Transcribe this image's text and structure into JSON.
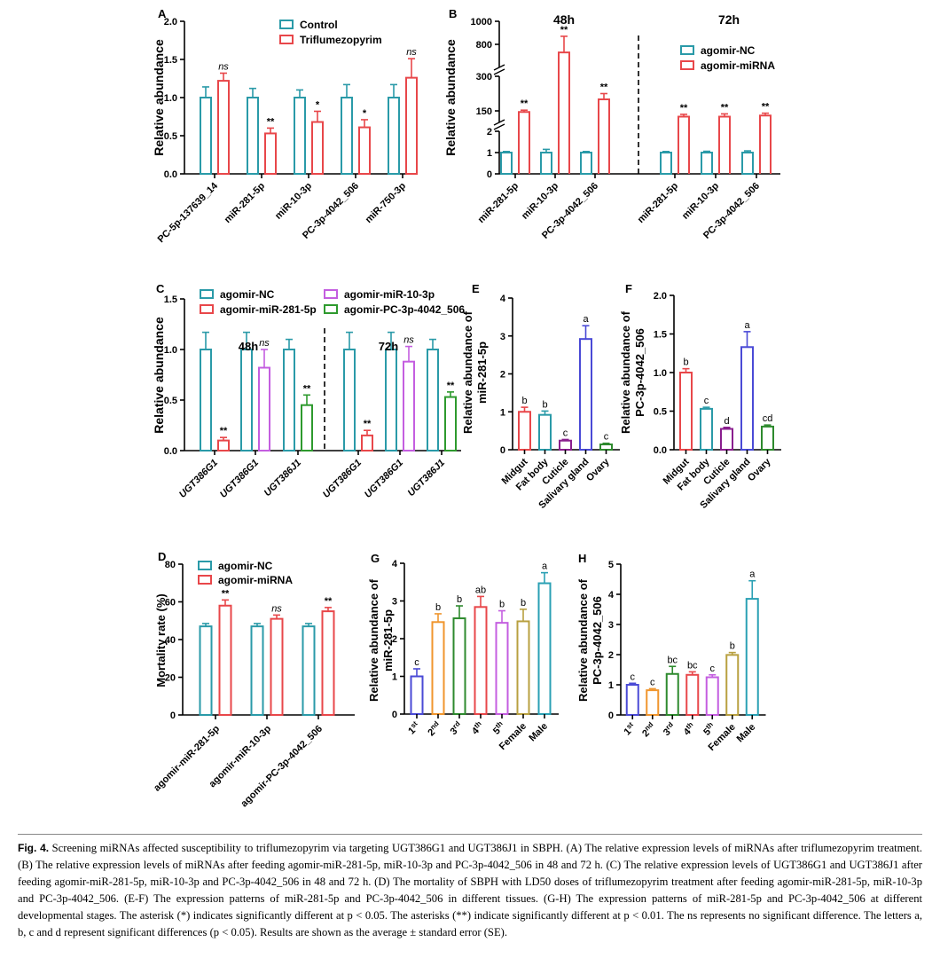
{
  "figure_title": "Fig. 4.",
  "caption": "Screening miRNAs affected susceptibility to triflumezopyrim via targeting UGT386G1 and UGT386J1 in SBPH. (A) The relative expression levels of miRNAs after triflumezopyrim treatment. (B) The relative expression levels of miRNAs after feeding agomir-miR-281-5p, miR-10-3p and PC-3p-4042_506 in 48 and 72 h. (C) The relative expression levels of UGT386G1 and UGT386J1 after feeding agomir-miR-281-5p, miR-10-3p and PC-3p-4042_506 in 48 and 72 h. (D) The mortality of SBPH with LD50 doses of triflumezopyrim treatment after feeding agomir-miR-281-5p, miR-10-3p and PC-3p-4042_506. (E-F) The expression patterns of miR-281-5p and PC-3p-4042_506 in different tissues. (G-H) The expression patterns of miR-281-5p and PC-3p-4042_506 at different developmental stages. The asterisk (*) indicates significantly different at p < 0.05. The asterisks (**) indicate significantly different at p < 0.01. The ns represents no significant difference. The letters a, b, c and d represent significant differences (p < 0.05). Results are shown as the average ± standard error (SE).",
  "chart_data": [
    {
      "panel": "A",
      "type": "bar",
      "ylabel": "Relative abundance",
      "ylim": [
        0,
        2.0
      ],
      "yticks": [
        "0.0",
        "0.5",
        "1.0",
        "1.5",
        "2.0"
      ],
      "categories": [
        "PC-5p-137639_14",
        "miR-281-5p",
        "miR-10-3p",
        "PC-3p-4042_506",
        "miR-750-3p"
      ],
      "series": [
        {
          "name": "Control",
          "color": "#2a9aa8",
          "values": [
            1.0,
            1.0,
            1.0,
            1.0,
            1.0
          ],
          "errors": [
            0.14,
            0.12,
            0.1,
            0.17,
            0.17
          ],
          "labels": [
            "",
            "",
            "",
            "",
            ""
          ]
        },
        {
          "name": "Triflumezopyrim",
          "color": "#e8474a",
          "values": [
            1.22,
            0.53,
            0.68,
            0.61,
            1.26
          ],
          "errors": [
            0.1,
            0.07,
            0.14,
            0.1,
            0.25
          ],
          "labels": [
            "ns",
            "**",
            "*",
            "*",
            "ns"
          ]
        }
      ]
    },
    {
      "panel": "B",
      "type": "bar",
      "ylabel": "Relative abundance",
      "segments": [
        {
          "range": [
            0,
            2
          ],
          "ticks": [
            "0",
            "1",
            "2"
          ]
        },
        {
          "range": [
            100,
            300
          ],
          "ticks": [
            "150",
            "300"
          ]
        },
        {
          "range": [
            600,
            1000
          ],
          "ticks": [
            "800",
            "1000"
          ]
        }
      ],
      "time_labels": [
        "48h",
        "72h"
      ],
      "categories": [
        "miR-281-5p",
        "miR-10-3p",
        "PC-3p-4042_506",
        "miR-281-5p",
        "miR-10-3p",
        "PC-3p-4042_506"
      ],
      "series": [
        {
          "name": "agomir-NC",
          "color": "#2a9aa8",
          "values": [
            1.0,
            1.0,
            1.0,
            1.0,
            1.0,
            1.0
          ],
          "errors": [
            0.05,
            0.15,
            0.05,
            0.05,
            0.06,
            0.08
          ],
          "labels": [
            "",
            "",
            "",
            "",
            "",
            ""
          ]
        },
        {
          "name": "agomir-miRNA",
          "color": "#e8474a",
          "values": [
            145,
            730,
            200,
            125,
            125,
            130
          ],
          "errors": [
            8,
            140,
            25,
            10,
            12,
            10
          ],
          "labels": [
            "**",
            "**",
            "**",
            "**",
            "**",
            "**"
          ]
        }
      ]
    },
    {
      "panel": "C",
      "type": "bar",
      "ylabel": "Relative abundance",
      "ylim": [
        0,
        1.5
      ],
      "yticks": [
        "0.0",
        "0.5",
        "1.0",
        "1.5"
      ],
      "time_labels": [
        "48h",
        "72h"
      ],
      "categories": [
        "UGT386G1",
        "UGT386G1",
        "UGT386J1",
        "UGT386G1",
        "UGT386G1",
        "UGT386J1"
      ],
      "legend": [
        {
          "name": "agomir-NC",
          "color": "#2a9aa8"
        },
        {
          "name": "agomir-miR-281-5p",
          "color": "#e8474a"
        },
        {
          "name": "agomir-miR-10-3p",
          "color": "#c45ee0"
        },
        {
          "name": "agomir-PC-3p-4042_506",
          "color": "#2e9a2e"
        }
      ],
      "bars": [
        {
          "group": 0,
          "color": "#2a9aa8",
          "value": 1.0,
          "error": 0.17,
          "label": ""
        },
        {
          "group": 0,
          "color": "#e8474a",
          "value": 0.1,
          "error": 0.03,
          "label": "**"
        },
        {
          "group": 1,
          "color": "#2a9aa8",
          "value": 1.0,
          "error": 0.17,
          "label": ""
        },
        {
          "group": 1,
          "color": "#c45ee0",
          "value": 0.82,
          "error": 0.18,
          "label": "ns"
        },
        {
          "group": 2,
          "color": "#2a9aa8",
          "value": 1.0,
          "error": 0.1,
          "label": ""
        },
        {
          "group": 2,
          "color": "#2e9a2e",
          "value": 0.45,
          "error": 0.1,
          "label": "**"
        },
        {
          "group": 3,
          "color": "#2a9aa8",
          "value": 1.0,
          "error": 0.17,
          "label": ""
        },
        {
          "group": 3,
          "color": "#e8474a",
          "value": 0.15,
          "error": 0.05,
          "label": "**"
        },
        {
          "group": 4,
          "color": "#2a9aa8",
          "value": 1.0,
          "error": 0.17,
          "label": ""
        },
        {
          "group": 4,
          "color": "#c45ee0",
          "value": 0.88,
          "error": 0.15,
          "label": "ns"
        },
        {
          "group": 5,
          "color": "#2a9aa8",
          "value": 1.0,
          "error": 0.1,
          "label": ""
        },
        {
          "group": 5,
          "color": "#2e9a2e",
          "value": 0.53,
          "error": 0.05,
          "label": "**"
        }
      ]
    },
    {
      "panel": "D",
      "type": "bar",
      "ylabel": "Mortality rate (%)",
      "ylim": [
        0,
        80
      ],
      "yticks": [
        "0",
        "20",
        "40",
        "60",
        "80"
      ],
      "categories": [
        "agomir-miR-281-5p",
        "agomir-miR-10-3p",
        "agomir-PC-3p-4042_506"
      ],
      "series": [
        {
          "name": "agomir-NC",
          "color": "#2a9aa8",
          "values": [
            47,
            47,
            47
          ],
          "errors": [
            1.5,
            1.5,
            1.5
          ],
          "labels": [
            "",
            "",
            ""
          ]
        },
        {
          "name": "agomir-miRNA",
          "color": "#e8474a",
          "values": [
            58,
            51,
            55
          ],
          "errors": [
            3,
            2,
            2
          ],
          "labels": [
            "**",
            "ns",
            "**"
          ]
        }
      ]
    },
    {
      "panel": "E",
      "type": "bar",
      "ylabel": [
        "Relative abundance of",
        "miR-281-5p"
      ],
      "ylim": [
        0,
        4
      ],
      "yticks": [
        "0",
        "1",
        "2",
        "3",
        "4"
      ],
      "categories": [
        "Midgut",
        "Fat body",
        "Cuticle",
        "Salivary gland",
        "Ovary"
      ],
      "colors": [
        "#e8474a",
        "#2a9aa8",
        "#8a1e8e",
        "#4a4ad6",
        "#2e8a2e"
      ],
      "values": [
        1.0,
        0.92,
        0.24,
        2.92,
        0.14
      ],
      "errors": [
        0.12,
        0.1,
        0.03,
        0.35,
        0.03
      ],
      "letters": [
        "b",
        "b",
        "c",
        "a",
        "c"
      ]
    },
    {
      "panel": "F",
      "type": "bar",
      "ylabel": [
        "Relative abundance of",
        "PC-3p-4042_506"
      ],
      "ylim": [
        0,
        2.0
      ],
      "yticks": [
        "0.0",
        "0.5",
        "1.0",
        "1.5",
        "2.0"
      ],
      "categories": [
        "Midgut",
        "Fat body",
        "Cuticle",
        "Salivary gland",
        "Ovary"
      ],
      "colors": [
        "#e8474a",
        "#2a9aa8",
        "#8a1e8e",
        "#4a4ad6",
        "#2e8a2e"
      ],
      "values": [
        1.0,
        0.53,
        0.27,
        1.33,
        0.3
      ],
      "errors": [
        0.05,
        0.02,
        0.02,
        0.2,
        0.02
      ],
      "letters": [
        "b",
        "c",
        "d",
        "a",
        "cd"
      ]
    },
    {
      "panel": "G",
      "type": "bar",
      "ylabel": [
        "Relative abundance of",
        "miR-281-5p"
      ],
      "ylim": [
        0,
        4
      ],
      "yticks": [
        "0",
        "1",
        "2",
        "3",
        "4"
      ],
      "categories": [
        [
          "1",
          "st"
        ],
        [
          "2",
          "nd"
        ],
        [
          "3",
          "rd"
        ],
        [
          "4",
          "th"
        ],
        [
          "5",
          "th"
        ],
        [
          "Female",
          ""
        ],
        [
          "Male",
          ""
        ]
      ],
      "colors": [
        "#4a4ad6",
        "#f0962e",
        "#2e8a2e",
        "#e8474a",
        "#c45ee0",
        "#b8a040",
        "#2aa0b4"
      ],
      "values": [
        1.0,
        2.44,
        2.54,
        2.84,
        2.42,
        2.46,
        3.47
      ],
      "errors": [
        0.2,
        0.22,
        0.33,
        0.28,
        0.32,
        0.32,
        0.28
      ],
      "letters": [
        "c",
        "b",
        "b",
        "ab",
        "b",
        "b",
        "a"
      ]
    },
    {
      "panel": "H",
      "type": "bar",
      "ylabel": [
        "Relative abundance of",
        "PC-3p-4042_506"
      ],
      "ylim": [
        0,
        5
      ],
      "yticks": [
        "0",
        "1",
        "2",
        "3",
        "4",
        "5"
      ],
      "categories": [
        [
          "1",
          "st"
        ],
        [
          "2",
          "nd"
        ],
        [
          "3",
          "rd"
        ],
        [
          "4",
          "th"
        ],
        [
          "5",
          "th"
        ],
        [
          "Female",
          ""
        ],
        [
          "Male",
          ""
        ]
      ],
      "colors": [
        "#4a4ad6",
        "#f0962e",
        "#2e8a2e",
        "#e8474a",
        "#c45ee0",
        "#b8a040",
        "#2aa0b4"
      ],
      "values": [
        1.0,
        0.82,
        1.36,
        1.33,
        1.25,
        1.99,
        3.85
      ],
      "errors": [
        0.05,
        0.05,
        0.25,
        0.1,
        0.08,
        0.08,
        0.6
      ],
      "letters": [
        "c",
        "c",
        "bc",
        "bc",
        "c",
        "b",
        "a"
      ]
    }
  ]
}
